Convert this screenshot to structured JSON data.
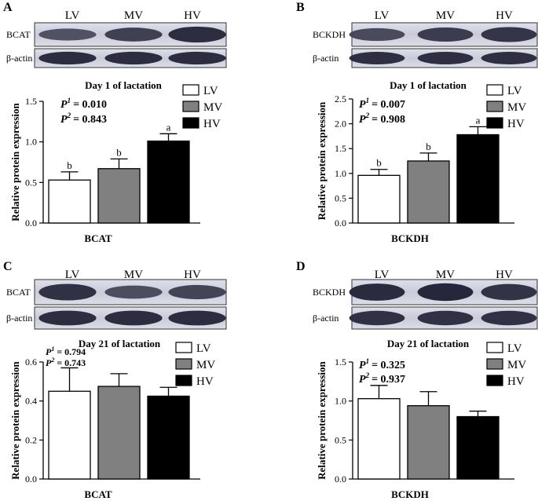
{
  "chart_data": [
    {
      "panel_letter": "A",
      "type": "bar",
      "lane_labels": [
        "LV",
        "MV",
        "HV"
      ],
      "blots": [
        {
          "label": "BCAT",
          "intensity": [
            0.45,
            0.68,
            0.92
          ]
        },
        {
          "label": "β-actin",
          "intensity": [
            0.92,
            0.92,
            0.92
          ]
        }
      ],
      "title": "Day 1 of lactation",
      "ylabel": "Relative protein expression",
      "xlabel": "BCAT",
      "ylim": [
        0,
        1.5
      ],
      "yticks": [
        "0.0",
        "0.5",
        "1.0",
        "1.5"
      ],
      "series": [
        {
          "name": "LV",
          "value": 0.53,
          "error": 0.1,
          "letter": "b",
          "color": "#ffffff"
        },
        {
          "name": "MV",
          "value": 0.67,
          "error": 0.12,
          "letter": "b",
          "color": "#808080"
        },
        {
          "name": "HV",
          "value": 1.01,
          "error": 0.09,
          "letter": "a",
          "color": "#000000"
        }
      ],
      "p1": "= 0.010",
      "p2": "= 0.843"
    },
    {
      "panel_letter": "B",
      "type": "bar",
      "lane_labels": [
        "LV",
        "MV",
        "HV"
      ],
      "blots": [
        {
          "label": "BCKDH",
          "intensity": [
            0.55,
            0.72,
            0.82
          ]
        },
        {
          "label": "β-actin",
          "intensity": [
            0.9,
            0.9,
            0.9
          ]
        }
      ],
      "title": "Day 1 of lactation",
      "ylabel": "Relative protein expression",
      "xlabel": "BCKDH",
      "ylim": [
        0,
        2.5
      ],
      "yticks": [
        "0.0",
        "0.5",
        "1.0",
        "1.5",
        "2.0",
        "2.5"
      ],
      "series": [
        {
          "name": "LV",
          "value": 0.96,
          "error": 0.12,
          "letter": "b",
          "color": "#ffffff"
        },
        {
          "name": "MV",
          "value": 1.25,
          "error": 0.16,
          "letter": "b",
          "color": "#808080"
        },
        {
          "name": "HV",
          "value": 1.78,
          "error": 0.16,
          "letter": "a",
          "color": "#000000"
        }
      ],
      "p1": "= 0.007",
      "p2": "= 0.908"
    },
    {
      "panel_letter": "C",
      "type": "bar",
      "lane_labels": [
        "LV",
        "MV",
        "HV"
      ],
      "blots": [
        {
          "label": "BCAT",
          "intensity": [
            0.88,
            0.5,
            0.62
          ]
        },
        {
          "label": "β-actin",
          "intensity": [
            0.92,
            0.92,
            0.92
          ]
        }
      ],
      "title": "Day 21 of lactation",
      "ylabel": "Relative protein expression",
      "xlabel": "BCAT",
      "ylim": [
        0,
        0.6
      ],
      "yticks": [
        "0.0",
        "0.2",
        "0.4",
        "0.6"
      ],
      "series": [
        {
          "name": "LV",
          "value": 0.45,
          "error": 0.12,
          "letter": "",
          "color": "#ffffff"
        },
        {
          "name": "MV",
          "value": 0.475,
          "error": 0.065,
          "letter": "",
          "color": "#808080"
        },
        {
          "name": "HV",
          "value": 0.425,
          "error": 0.045,
          "letter": "",
          "color": "#000000"
        }
      ],
      "p1": "= 0.794",
      "p2": "= 0.743"
    },
    {
      "panel_letter": "D",
      "type": "bar",
      "lane_labels": [
        "LV",
        "MV",
        "HV"
      ],
      "blots": [
        {
          "label": "BCKDH",
          "intensity": [
            0.95,
            1.0,
            0.85
          ]
        },
        {
          "label": "β-actin",
          "intensity": [
            0.88,
            0.88,
            0.88
          ]
        }
      ],
      "title": "Day 21 of lactation",
      "ylabel": "Relative protein expression",
      "xlabel": "BCKDH",
      "ylim": [
        0,
        1.5
      ],
      "yticks": [
        "0.0",
        "0.5",
        "1.0",
        "1.5"
      ],
      "series": [
        {
          "name": "LV",
          "value": 1.03,
          "error": 0.17,
          "letter": "",
          "color": "#ffffff"
        },
        {
          "name": "MV",
          "value": 0.94,
          "error": 0.18,
          "letter": "",
          "color": "#808080"
        },
        {
          "name": "HV",
          "value": 0.8,
          "error": 0.07,
          "letter": "",
          "color": "#000000"
        }
      ],
      "p1": "= 0.325",
      "p2": "= 0.937"
    }
  ]
}
